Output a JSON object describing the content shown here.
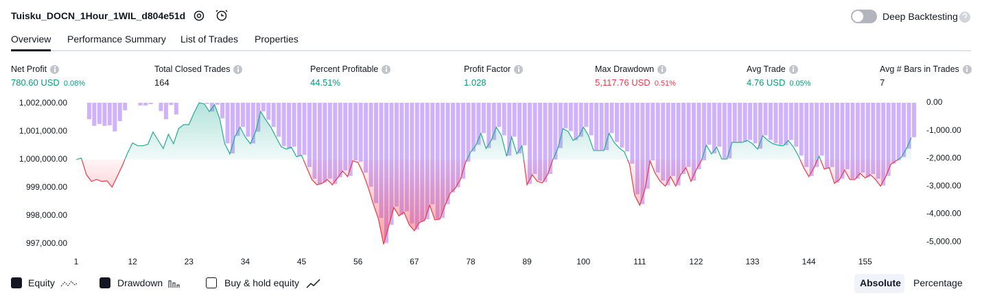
{
  "header": {
    "title": "Tuisku_DOCN_1Hour_1WIL_d804e51d",
    "deep_backtesting": {
      "label": "Deep Backtesting",
      "on": false
    }
  },
  "tabs": {
    "items": [
      "Overview",
      "Performance Summary",
      "List of Trades",
      "Properties"
    ],
    "active": 0
  },
  "metrics": [
    {
      "label": "Net Profit",
      "value": "780.60 USD",
      "percent": "0.08%",
      "color": "#089981"
    },
    {
      "label": "Total Closed Trades",
      "value": "164",
      "color": "#131722"
    },
    {
      "label": "Percent Profitable",
      "value": "44.51%",
      "color": "#089981"
    },
    {
      "label": "Profit Factor",
      "value": "1.028",
      "color": "#089981"
    },
    {
      "label": "Max Drawdown",
      "value": "5,117.76 USD",
      "percent": "0.51%",
      "color": "#f23645"
    },
    {
      "label": "Avg Trade",
      "value": "4.76 USD",
      "percent": "0.05%",
      "color": "#089981"
    },
    {
      "label": "Avg # Bars in Trades",
      "value": "7",
      "color": "#131722"
    }
  ],
  "chart_data": {
    "type": "line",
    "grid": false,
    "x": [
      1,
      2,
      3,
      4,
      5,
      6,
      7,
      8,
      9,
      10,
      11,
      12,
      13,
      14,
      15,
      16,
      17,
      18,
      19,
      20,
      21,
      22,
      23,
      24,
      25,
      26,
      27,
      28,
      29,
      30,
      31,
      32,
      33,
      34,
      35,
      36,
      37,
      38,
      39,
      40,
      41,
      42,
      43,
      44,
      45,
      46,
      47,
      48,
      49,
      50,
      51,
      52,
      53,
      54,
      55,
      56,
      57,
      58,
      59,
      60,
      61,
      62,
      63,
      64,
      65,
      66,
      67,
      68,
      69,
      70,
      71,
      72,
      73,
      74,
      75,
      76,
      77,
      78,
      79,
      80,
      81,
      82,
      83,
      84,
      85,
      86,
      87,
      88,
      89,
      90,
      91,
      92,
      93,
      94,
      95,
      96,
      97,
      98,
      99,
      100,
      101,
      102,
      103,
      104,
      105,
      106,
      107,
      108,
      109,
      110,
      111,
      112,
      113,
      114,
      115,
      116,
      117,
      118,
      119,
      120,
      121,
      122,
      123,
      124,
      125,
      126,
      127,
      128,
      129,
      130,
      131,
      132,
      133,
      134,
      135,
      136,
      137,
      138,
      139,
      140,
      141,
      142,
      143,
      144,
      145,
      146,
      147,
      148,
      149,
      150,
      151,
      152,
      153,
      154,
      155,
      156,
      157,
      158,
      159,
      160,
      161,
      162,
      163,
      164
    ],
    "xlim": [
      1,
      164
    ],
    "xticks": [
      1,
      12,
      23,
      34,
      45,
      56,
      67,
      78,
      89,
      100,
      111,
      122,
      133,
      144,
      155
    ],
    "ylim": [
      996900,
      1002070
    ],
    "yticks": [
      {
        "value": 997000,
        "label": "997,000.00"
      },
      {
        "value": 998000,
        "label": "998,000.00"
      },
      {
        "value": 999000,
        "label": "999,000.00"
      },
      {
        "value": 1000000,
        "label": "1,000,000.00"
      },
      {
        "value": 1001000,
        "label": "1,001,000.00"
      },
      {
        "value": 1002000,
        "label": "1,002,000.00"
      }
    ],
    "y2lim": [
      -5170,
      50
    ],
    "y2ticks": [
      {
        "value": 0,
        "label": "0.00"
      },
      {
        "value": -1000,
        "label": "-1,000.00"
      },
      {
        "value": -2000,
        "label": "-2,000.00"
      },
      {
        "value": -3000,
        "label": "-3,000.00"
      },
      {
        "value": -4000,
        "label": "-4,000.00"
      },
      {
        "value": -5000,
        "label": "-5,000.00"
      }
    ],
    "series": [
      {
        "name": "Equity",
        "type": "line",
        "checked": true,
        "color": "#22ab94",
        "negative_color": "#f23645",
        "values": [
          1000000,
          1000050,
          999460,
          999220,
          999290,
          999220,
          999240,
          999020,
          999390,
          999780,
          1000220,
          1000590,
          1000490,
          1000490,
          1000540,
          1000980,
          1000680,
          1000390,
          1000900,
          1000560,
          1001100,
          1001240,
          1001240,
          1001660,
          1002020,
          1001980,
          1001710,
          1001950,
          1001460,
          1000560,
          1000200,
          1000830,
          1001150,
          1000800,
          1000560,
          1000980,
          1001710,
          1001410,
          1001150,
          1000800,
          1000460,
          1000370,
          1000440,
          1000100,
          1000150,
          999710,
          999290,
          999100,
          999150,
          999290,
          999100,
          999340,
          999590,
          999390,
          999950,
          999900,
          999510,
          999000,
          998410,
          997880,
          996980,
          997630,
          998290,
          997995,
          998120,
          997680,
          997460,
          997760,
          997830,
          998370,
          997850,
          997880,
          998370,
          998800,
          998980,
          999290,
          999900,
          1000270,
          1000510,
          1000930,
          1000390,
          1000680,
          1001150,
          1000850,
          1000120,
          1000800,
          1000200,
          1000490,
          999100,
          999460,
          999220,
          999170,
          999460,
          999980,
          1000390,
          1001100,
          1001000,
          1000680,
          1000800,
          1001150,
          1000850,
          1000320,
          1000320,
          1000320,
          1000930,
          1000610,
          1000410,
          1000270,
          999830,
          998730,
          998370,
          998930,
          999950,
          999510,
          999220,
          999050,
          999390,
          999050,
          999460,
          999710,
          999220,
          999630,
          999950,
          1000510,
          1000200,
          1000440,
          1000020,
          1000020,
          1000610,
          1000610,
          1000610,
          1000680,
          1000560,
          1000370,
          1000850,
          1000680,
          1000560,
          1000510,
          1000490,
          1000680,
          1000440,
          1000120,
          999710,
          999390,
          999710,
          1000120,
          999660,
          999710,
          999150,
          999290,
          999630,
          999290,
          999290,
          999510,
          999340,
          999460,
          999290,
          999050,
          999390,
          999830,
          999950,
          1000070,
          1000370,
          1000780
        ]
      },
      {
        "name": "Drawdown",
        "type": "bar",
        "axis": "y2",
        "checked": true,
        "color": "#cfb2fb",
        "values": [
          0,
          0,
          -590,
          -830,
          -760,
          -830,
          -810,
          -1030,
          -660,
          -270,
          0,
          0,
          -100,
          -100,
          -50,
          0,
          -300,
          -590,
          -80,
          -420,
          0,
          0,
          0,
          0,
          0,
          -40,
          -310,
          -70,
          -560,
          -1460,
          -1820,
          -1190,
          -870,
          -1220,
          -1460,
          -1040,
          -310,
          -610,
          -870,
          -1220,
          -1560,
          -1650,
          -1580,
          -1920,
          -1870,
          -2310,
          -2730,
          -2920,
          -2870,
          -2730,
          -2920,
          -2680,
          -2430,
          -2630,
          -2070,
          -2120,
          -2510,
          -3020,
          -3610,
          -4140,
          -5040,
          -4390,
          -3730,
          -4025,
          -3900,
          -4340,
          -4560,
          -4260,
          -4190,
          -3650,
          -4170,
          -4140,
          -3650,
          -3220,
          -3040,
          -2730,
          -2120,
          -1750,
          -1510,
          -1090,
          -1630,
          -1340,
          -870,
          -1170,
          -1900,
          -1220,
          -1820,
          -1530,
          -2920,
          -2560,
          -2800,
          -2850,
          -2560,
          -2040,
          -1630,
          -920,
          -1020,
          -1340,
          -1220,
          -870,
          -1170,
          -1700,
          -1700,
          -1700,
          -1090,
          -1410,
          -1610,
          -1750,
          -2190,
          -3290,
          -3650,
          -3090,
          -2070,
          -2510,
          -2800,
          -2970,
          -2630,
          -2970,
          -2560,
          -2310,
          -2800,
          -2390,
          -2070,
          -1510,
          -1820,
          -1580,
          -2000,
          -2000,
          -1410,
          -1410,
          -1410,
          -1340,
          -1460,
          -1650,
          -1170,
          -1340,
          -1460,
          -1510,
          -1530,
          -1340,
          -1580,
          -1900,
          -2310,
          -2630,
          -2310,
          -1900,
          -2360,
          -2310,
          -2870,
          -2730,
          -2390,
          -2730,
          -2730,
          -2510,
          -2680,
          -2560,
          -2730,
          -2970,
          -2630,
          -2190,
          -2070,
          -1950,
          -1650,
          -1240
        ]
      }
    ],
    "buy_hold": {
      "label": "Buy & hold equity",
      "checked": false
    },
    "modes": {
      "items": [
        "Absolute",
        "Percentage"
      ],
      "active": 0
    }
  }
}
